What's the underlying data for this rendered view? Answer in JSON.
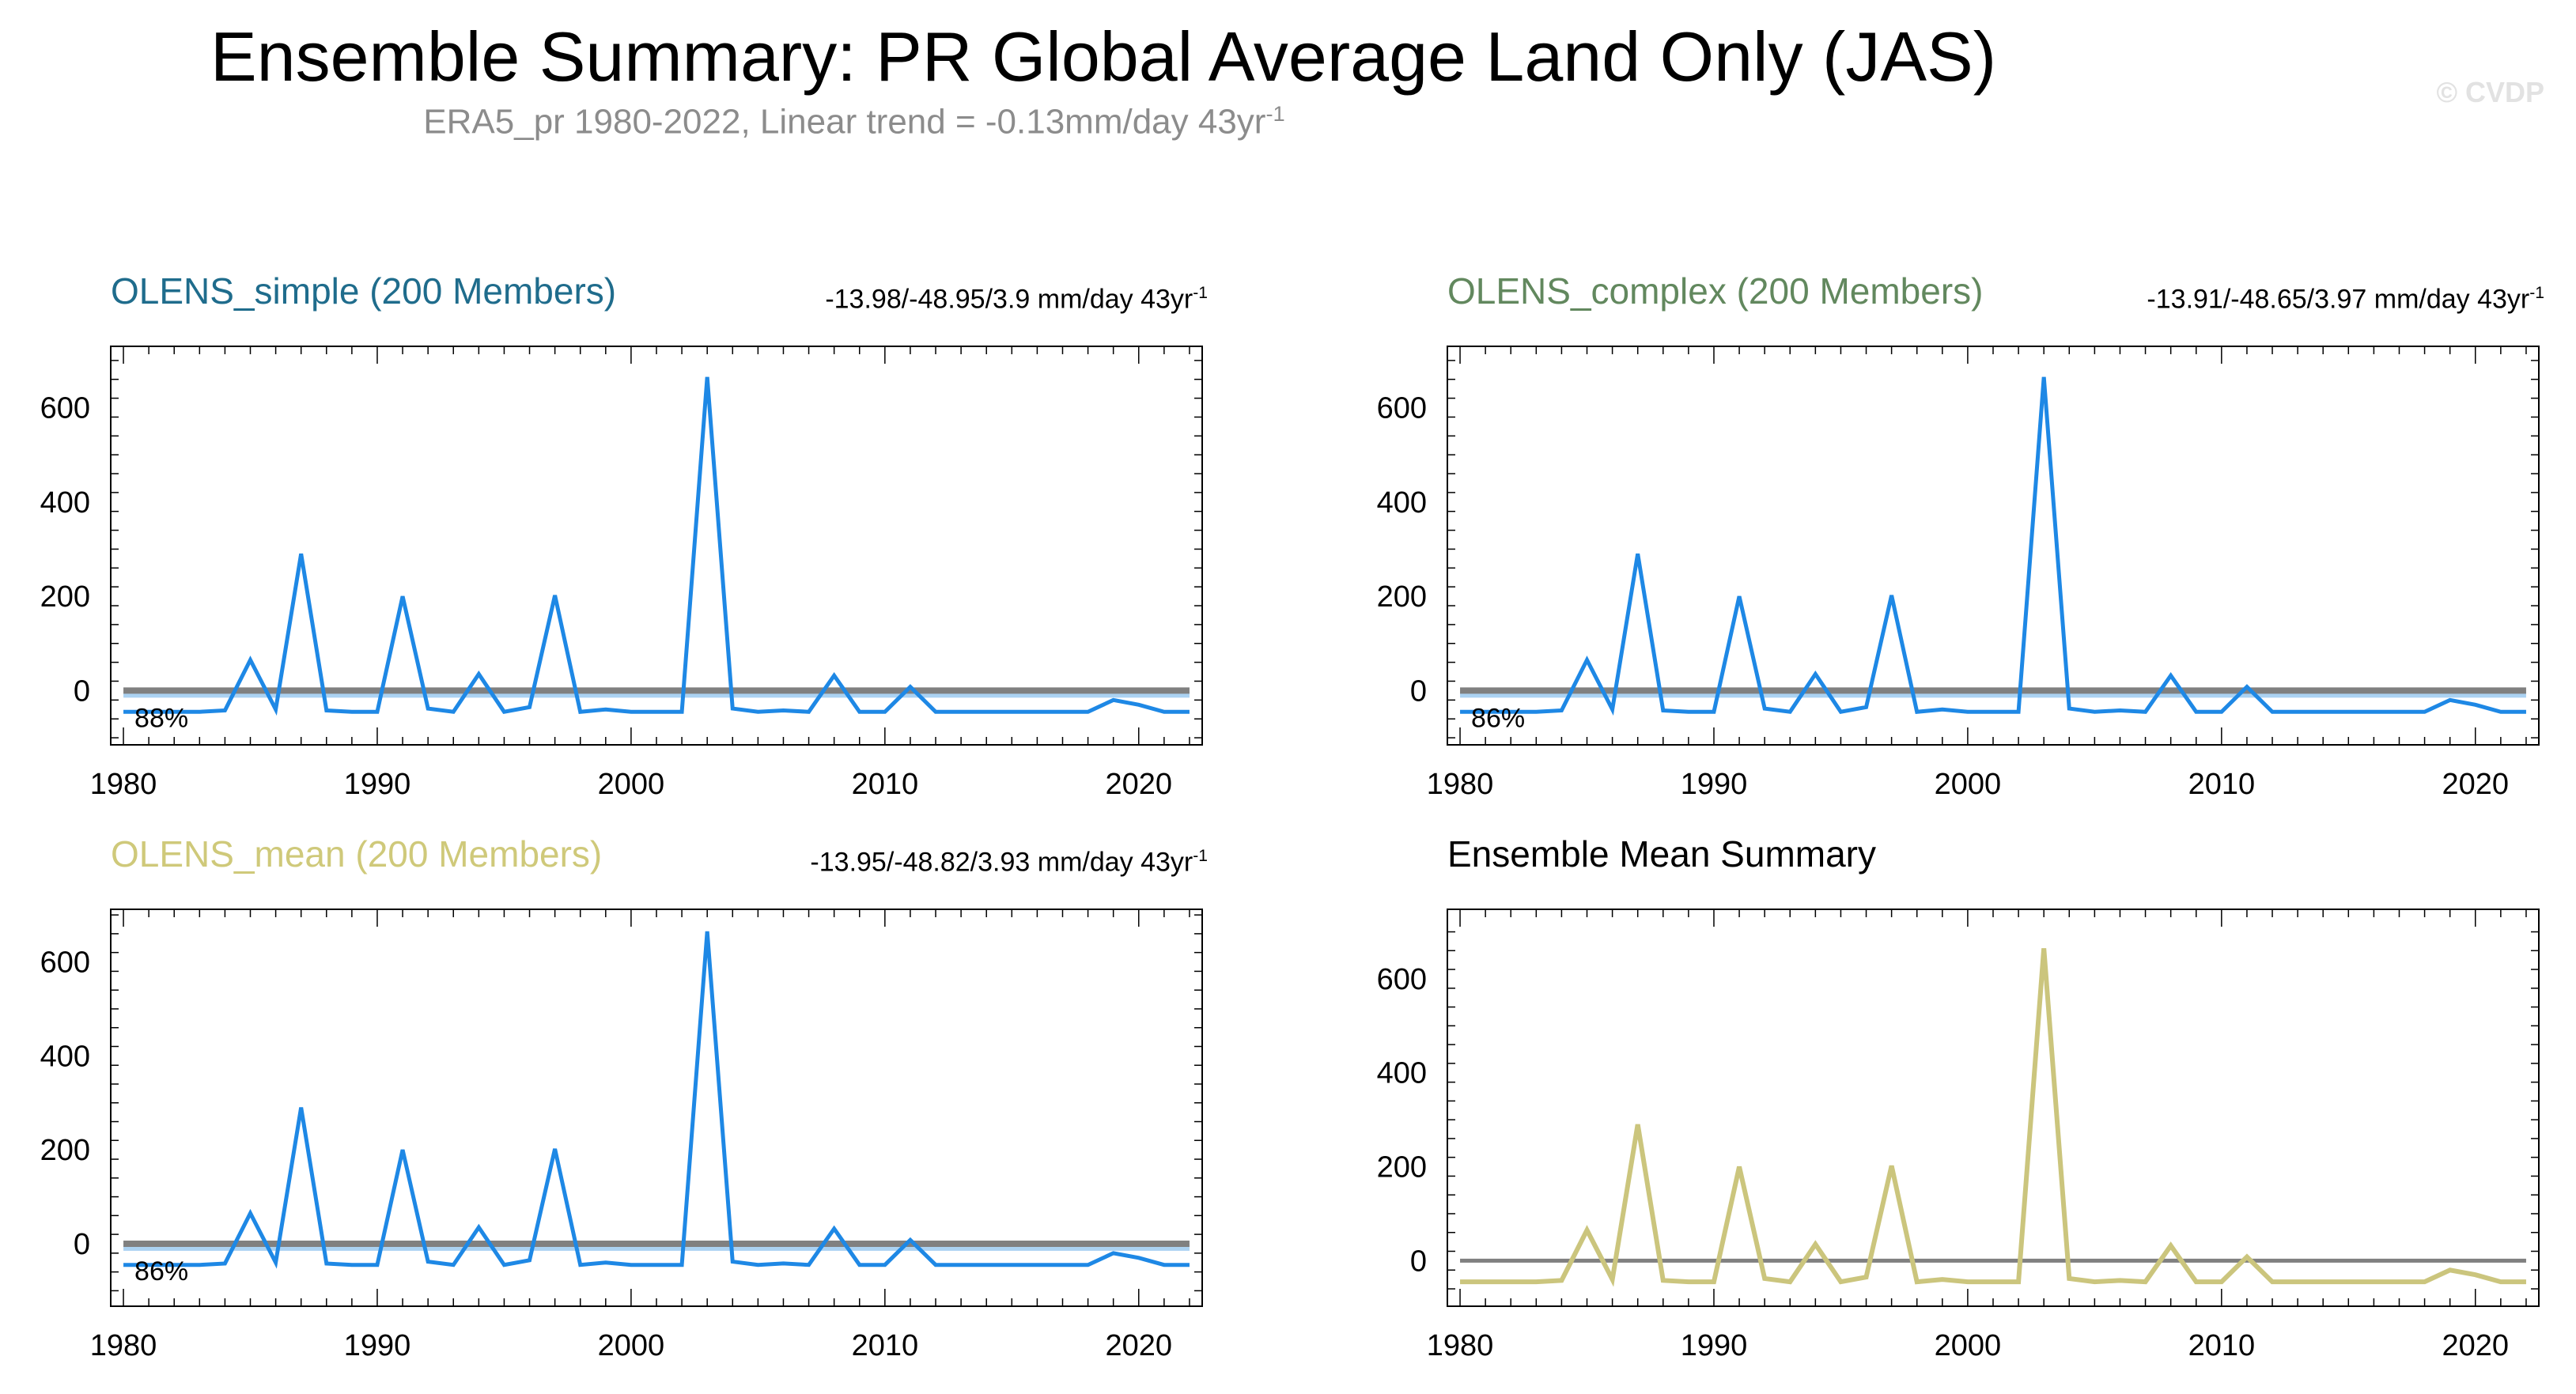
{
  "title": "Ensemble Summary: PR Global Average Land Only (JAS)",
  "subtitle": {
    "text": "ERA5_pr 1980-2022, Linear trend = -0.13mm/day 43yr",
    "superscript": "-1"
  },
  "credit": "© CVDP",
  "colors": {
    "simple_title": "#1f6c8c",
    "complex_title": "#62885e",
    "mean_title": "#cfc97a",
    "member_line": "#1e88e5",
    "spread_band": "#9ccaf0",
    "zero_line": "#808080",
    "ensemble_mean_line": "#cbc57d"
  },
  "panels": [
    {
      "title": "OLENS_simple (200 Members)",
      "trend": "-13.98/-48.95/3.9 mm/day 43yr",
      "trend_sup": "-1",
      "percent": "88%"
    },
    {
      "title": "OLENS_complex (200 Members)",
      "trend": "-13.91/-48.65/3.97 mm/day 43yr",
      "trend_sup": "-1",
      "percent": "86%"
    },
    {
      "title": "OLENS_mean (200 Members)",
      "trend": "-13.95/-48.82/3.93 mm/day 43yr",
      "trend_sup": "-1",
      "percent": "86%"
    },
    {
      "title": "Ensemble Mean Summary"
    }
  ],
  "chart_data": {
    "type": "line",
    "x": [
      1980,
      1981,
      1982,
      1983,
      1984,
      1985,
      1986,
      1987,
      1988,
      1989,
      1990,
      1991,
      1992,
      1993,
      1994,
      1995,
      1996,
      1997,
      1998,
      1999,
      2000,
      2001,
      2002,
      2003,
      2004,
      2005,
      2006,
      2007,
      2008,
      2009,
      2010,
      2011,
      2012,
      2013,
      2014,
      2015,
      2016,
      2017,
      2018,
      2019,
      2020,
      2021,
      2022
    ],
    "series": [
      {
        "values": [
          -45,
          -45,
          -45,
          -45,
          -42,
          65,
          -40,
          290,
          -42,
          -45,
          -45,
          200,
          -38,
          -45,
          35,
          -45,
          -35,
          202,
          -45,
          -40,
          -45,
          -45,
          -45,
          665,
          -38,
          -45,
          -42,
          -45,
          32,
          -45,
          -45,
          8,
          -45,
          -45,
          -45,
          -45,
          -45,
          -45,
          -45,
          -20,
          -30,
          -45,
          -45
        ]
      }
    ],
    "spread_band": {
      "low": -15,
      "high": -2
    },
    "zero_line": 0,
    "xlim": [
      1979.5,
      2022.5
    ],
    "ylim": [
      -115,
      730
    ],
    "xticks": [
      1980,
      1990,
      2000,
      2010,
      2020
    ],
    "yticks": [
      0,
      200,
      400,
      600
    ],
    "xtick_labels": [
      "1980",
      "1990",
      "2000",
      "2010",
      "2020"
    ],
    "ytick_labels": [
      "0",
      "200",
      "400",
      "600"
    ]
  }
}
